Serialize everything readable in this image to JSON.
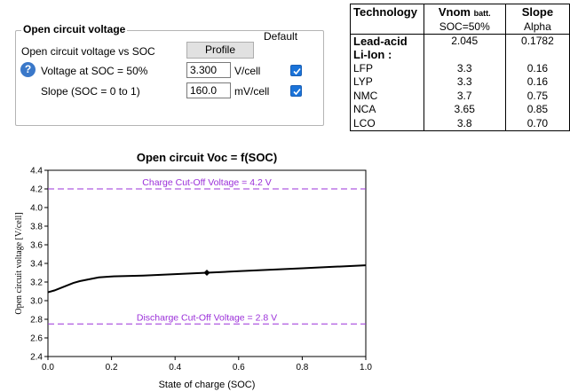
{
  "group": {
    "title": "Open circuit voltage",
    "default_label": "Default",
    "row1_label": "Open circuit voltage vs SOC",
    "profile_button": "Profile",
    "row2_label": "Voltage at SOC = 50%",
    "row2_value": "3.300",
    "row2_unit": "V/cell",
    "row2_default_checked": true,
    "row3_label": "Slope (SOC = 0 to 1)",
    "row3_value": "160.0",
    "row3_unit": "mV/cell",
    "row3_default_checked": true,
    "help_glyph": "?"
  },
  "table": {
    "h_tech": "Technology",
    "h_vnom": "Vnom",
    "h_vnom_sub": "batt.",
    "h_slope": "Slope",
    "sub_vnom": "SOC=50%",
    "sub_slope": "Alpha",
    "leadacid": {
      "name": "Lead-acid",
      "vnom": "2.045",
      "slope": "0.1782"
    },
    "liion_header": "Li-Ion :",
    "rows": [
      {
        "name": "LFP",
        "vnom": "3.3",
        "slope": "0.16"
      },
      {
        "name": "LYP",
        "vnom": "3.3",
        "slope": "0.16"
      },
      {
        "name": "NMC",
        "vnom": "3.7",
        "slope": "0.75"
      },
      {
        "name": "NCA",
        "vnom": "3.65",
        "slope": "0.85"
      },
      {
        "name": "LCO",
        "vnom": "3.8",
        "slope": "0.70"
      }
    ]
  },
  "chart_data": {
    "type": "line",
    "title": "Open circuit Voc = f(SOC)",
    "xlabel": "State of charge (SOC)",
    "ylabel": "Open circuit voltage  [V/cell]",
    "xlim": [
      0,
      1
    ],
    "ylim": [
      2.4,
      4.4
    ],
    "xticks": [
      "0.0",
      "0.2",
      "0.4",
      "0.6",
      "0.8",
      "1.0"
    ],
    "yticks": [
      "2.4",
      "2.6",
      "2.8",
      "3.0",
      "3.2",
      "3.4",
      "3.6",
      "3.8",
      "4.0",
      "4.2",
      "4.4"
    ],
    "series": [
      {
        "x": [
          0,
          0.02,
          0.05,
          0.08,
          0.1,
          0.13,
          0.16,
          0.2,
          0.3,
          0.4,
          0.5,
          0.6,
          0.7,
          0.8,
          0.9,
          1.0
        ],
        "y": [
          3.09,
          3.11,
          3.15,
          3.19,
          3.21,
          3.23,
          3.25,
          3.26,
          3.27,
          3.285,
          3.3,
          3.316,
          3.332,
          3.348,
          3.364,
          3.38
        ]
      }
    ],
    "marker": {
      "x": 0.5,
      "y": 3.3
    },
    "lines": [
      {
        "y": 4.2,
        "label": "Charge Cut-Off Voltage = 4.2 V",
        "color": "#9b30d9"
      },
      {
        "y": 2.75,
        "label": "Discharge Cut-Off Voltage = 2.8 V",
        "color": "#9b30d9"
      }
    ]
  }
}
